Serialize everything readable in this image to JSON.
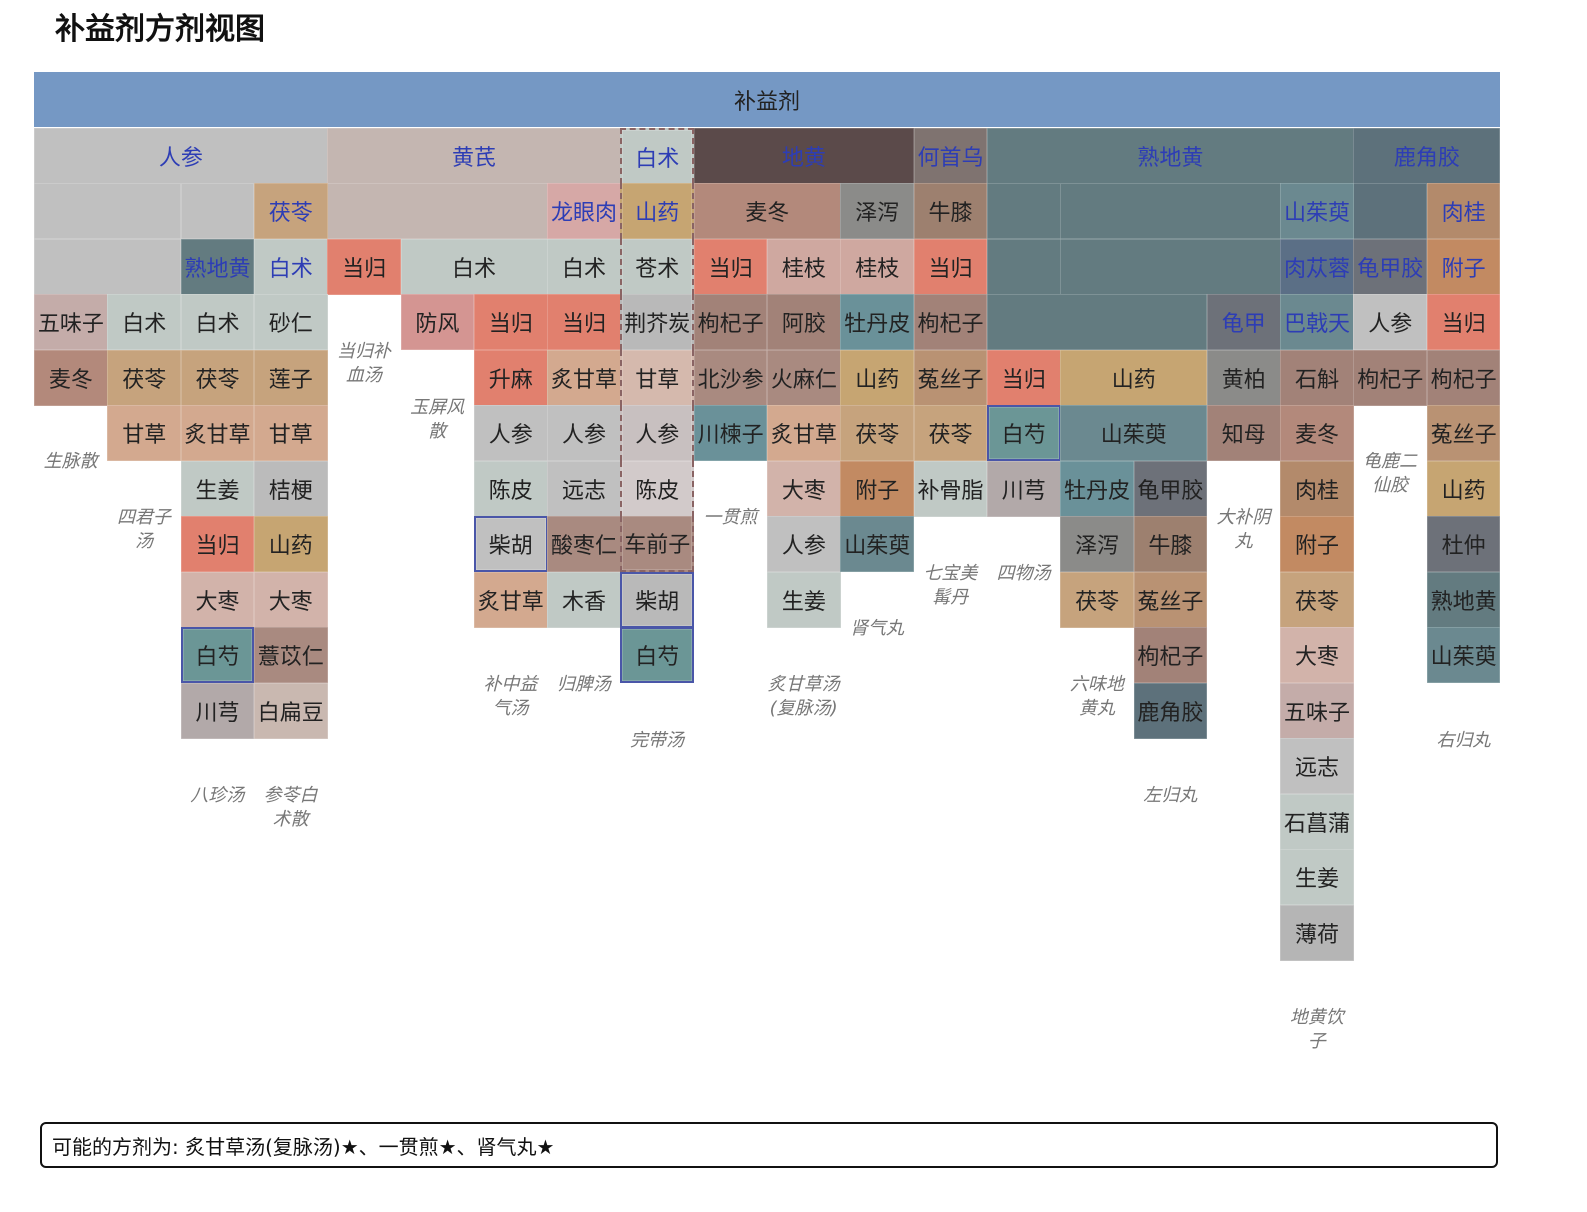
{
  "title": "补益剂方剂视图",
  "tree": {
    "root": "补益剂",
    "rows": [
      [
        "人参",
        "黄芪",
        "白术",
        "地黄",
        "何首乌",
        "熟地黄",
        "鹿角胶"
      ],
      [
        "茯苓",
        "龙眼肉",
        "山药",
        "麦冬",
        "泽泻",
        "牛膝",
        "山茱萸",
        "肉桂"
      ],
      [
        "熟地黄",
        "白术",
        "当归",
        "白术",
        "白术",
        "苍术",
        "当归",
        "桂枝",
        "桂枝",
        "当归",
        "肉苁蓉",
        "龟甲胶",
        "附子"
      ],
      [
        "五味子",
        "白术",
        "白术",
        "砂仁",
        "防风",
        "当归",
        "当归",
        "荆芥炭",
        "枸杞子",
        "阿胶",
        "牡丹皮",
        "枸杞子",
        "龟甲",
        "巴戟天",
        "人参",
        "当归"
      ],
      [
        "麦冬",
        "茯苓",
        "茯苓",
        "莲子",
        "升麻",
        "炙甘草",
        "甘草",
        "北沙参",
        "火麻仁",
        "山药",
        "菟丝子",
        "当归",
        "山药",
        "黄柏",
        "石斛",
        "枸杞子",
        "枸杞子"
      ],
      [
        "甘草",
        "炙甘草",
        "甘草",
        "人参",
        "人参",
        "人参",
        "川楝子",
        "炙甘草",
        "茯苓",
        "茯苓",
        "白芍",
        "山茱萸",
        "知母",
        "麦冬",
        "菟丝子"
      ],
      [
        "生姜",
        "桔梗",
        "陈皮",
        "远志",
        "陈皮",
        "大枣",
        "附子",
        "补骨脂",
        "川芎",
        "牡丹皮",
        "龟甲胶",
        "肉桂",
        "山药"
      ],
      [
        "当归",
        "山药",
        "柴胡",
        "酸枣仁",
        "车前子",
        "人参",
        "山茱萸",
        "泽泻",
        "牛膝",
        "附子",
        "杜仲"
      ],
      [
        "大枣",
        "大枣",
        "炙甘草",
        "木香",
        "柴胡",
        "生姜",
        "茯苓",
        "菟丝子",
        "茯苓",
        "熟地黄"
      ],
      [
        "白芍",
        "薏苡仁",
        "白芍",
        "枸杞子",
        "大枣",
        "山茱萸"
      ],
      [
        "川芎",
        "白扁豆",
        "鹿角胶",
        "五味子"
      ],
      [
        "远志"
      ],
      [
        "石菖蒲"
      ],
      [
        "生姜"
      ],
      [
        "薄荷"
      ]
    ]
  },
  "formulas": [
    "生脉散",
    "四君子汤",
    "八珍汤",
    "参苓白术散",
    "当归补血汤",
    "玉屏风散",
    "补中益气汤",
    "归脾汤",
    "完带汤",
    "一贯煎",
    "炙甘草汤(复脉汤)",
    "肾气丸",
    "七宝美髯丹",
    "四物汤",
    "六味地黄丸",
    "左归丸",
    "大补阴丸",
    "地黄饮子",
    "龟鹿二仙胶",
    "右归丸"
  ],
  "footer": "可能的方剂为: 炙甘草汤(复脉汤)★、一贯煎★、肾气丸★"
}
